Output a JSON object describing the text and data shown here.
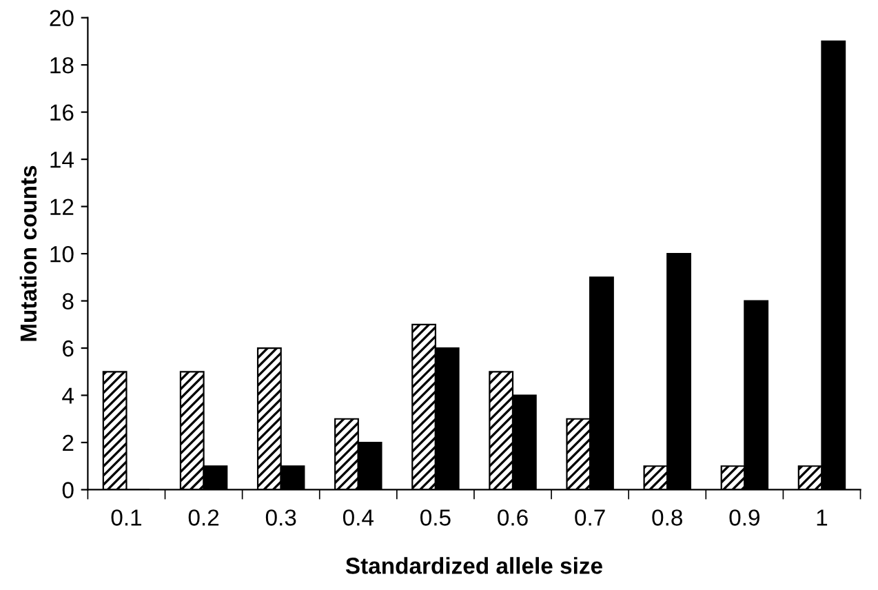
{
  "chart_data": {
    "type": "bar",
    "xlabel": "Standardized allele size",
    "ylabel": "Mutation counts",
    "categories": [
      "0.1",
      "0.2",
      "0.3",
      "0.4",
      "0.5",
      "0.6",
      "0.7",
      "0.8",
      "0.9",
      "1"
    ],
    "series": [
      {
        "color": "#000000",
        "values": [
          5,
          5,
          6,
          3,
          7,
          5,
          3,
          1,
          1,
          1
        ]
      },
      {
        "color": "#000000",
        "values": [
          0,
          1,
          1,
          2,
          6,
          4,
          9,
          10,
          8,
          19
        ]
      }
    ],
    "ylim": [
      0,
      20
    ],
    "yticks": [
      0,
      2,
      4,
      6,
      8,
      10,
      12,
      14,
      16,
      18,
      20
    ],
    "grid": false,
    "legend": false
  }
}
